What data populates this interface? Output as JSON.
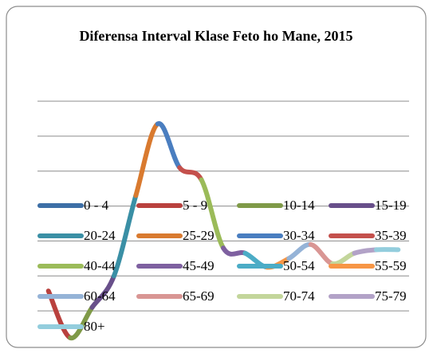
{
  "chart_data": {
    "type": "line",
    "title": "Diferensa Interval Klase Feto ho Mane, 2015",
    "categories": [
      "0 - 4",
      "5 - 9",
      "10-14",
      "15-19",
      "20-24",
      "25-29",
      "30-34",
      "35-39",
      "40-44",
      "45-49",
      "50-54",
      "55-59",
      "60-64",
      "65-69",
      "70-74",
      "75-79",
      "80+"
    ],
    "values": [
      1.57,
      0.23,
      1.1,
      2.0,
      4.3,
      6.35,
      5.1,
      4.75,
      2.8,
      2.65,
      2.25,
      2.5,
      2.9,
      2.35,
      2.65,
      2.75,
      2.75
    ],
    "colors": [
      "#3d6fa6",
      "#b9413e",
      "#7f9a48",
      "#684f8a",
      "#3a8fa5",
      "#d97a2f",
      "#4a7ec0",
      "#c4504c",
      "#9bbb59",
      "#7e60a0",
      "#4bacc6",
      "#f79646",
      "#95b3d7",
      "#d99694",
      "#c3d69b",
      "#b2a2c7",
      "#93cddd"
    ],
    "ylim": [
      0,
      7
    ],
    "yticks": [
      1,
      2,
      3,
      4,
      5,
      6,
      7
    ],
    "grid": true
  }
}
